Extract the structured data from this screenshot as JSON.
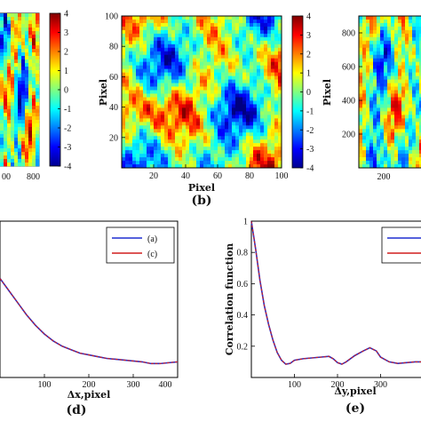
{
  "colorbar_ticks": [
    "4",
    "3",
    "2",
    "1",
    "0",
    "-1",
    "-2",
    "-3",
    "-4"
  ],
  "panel_a": {
    "x_ticks": [
      "00",
      "800"
    ]
  },
  "panel_b": {
    "label": "(b)",
    "xlabel": "Pixel",
    "ylabel": "Pixel",
    "x_ticks": [
      "20",
      "40",
      "60",
      "80",
      "100"
    ],
    "y_ticks": [
      "100",
      "80",
      "60",
      "40",
      "20"
    ]
  },
  "panel_c": {
    "ylabel": "Pixel",
    "y_ticks": [
      "800",
      "600",
      "400",
      "200"
    ],
    "x_ticks": [
      "200"
    ]
  },
  "panel_d": {
    "label": "(d)",
    "xlabel": "Δx,pixel",
    "x_ticks": [
      "100",
      "200",
      "300",
      "400"
    ],
    "legend": [
      "(a)",
      "(c)"
    ]
  },
  "panel_e": {
    "label": "(e)",
    "xlabel": "Δy,pixel",
    "ylabel": "Correlation function",
    "x_ticks": [
      "100",
      "200",
      "300"
    ],
    "y_ticks": [
      "1",
      "0.8",
      "0.6",
      "0.4",
      "0.2"
    ]
  },
  "chart_data": [
    {
      "type": "heatmap",
      "panel": "b",
      "xlim": [
        0,
        100
      ],
      "ylim": [
        0,
        100
      ],
      "colorbar_range": [
        -4,
        4
      ],
      "colormap": "jet"
    },
    {
      "type": "line",
      "panel": "d",
      "xlim": [
        0,
        400
      ],
      "series": [
        {
          "name": "(a)",
          "color": "#1f2fd0",
          "x": [
            0,
            20,
            40,
            60,
            80,
            100,
            120,
            140,
            160,
            180,
            200,
            220,
            240,
            260,
            280,
            300,
            320,
            340,
            360,
            380,
            400
          ],
          "y": [
            0.62,
            0.55,
            0.48,
            0.41,
            0.35,
            0.3,
            0.26,
            0.23,
            0.21,
            0.19,
            0.18,
            0.17,
            0.16,
            0.155,
            0.15,
            0.145,
            0.14,
            0.13,
            0.13,
            0.135,
            0.14
          ]
        },
        {
          "name": "(c)",
          "color": "#d01f1f",
          "x": [
            0,
            20,
            40,
            60,
            80,
            100,
            120,
            140,
            160,
            180,
            200,
            220,
            240,
            260,
            280,
            300,
            320,
            340,
            360,
            380,
            400
          ],
          "y": [
            0.62,
            0.55,
            0.48,
            0.41,
            0.35,
            0.3,
            0.26,
            0.23,
            0.21,
            0.19,
            0.18,
            0.17,
            0.16,
            0.155,
            0.15,
            0.145,
            0.14,
            0.13,
            0.13,
            0.135,
            0.14
          ]
        }
      ]
    },
    {
      "type": "line",
      "panel": "e",
      "xlim": [
        0,
        400
      ],
      "ylim": [
        0,
        1
      ],
      "series": [
        {
          "color": "#1f2fd0",
          "x": [
            0,
            10,
            20,
            30,
            40,
            50,
            60,
            70,
            80,
            90,
            100,
            120,
            140,
            160,
            180,
            190,
            200,
            210,
            220,
            240,
            260,
            275,
            290,
            300,
            320,
            340,
            360,
            380,
            400
          ],
          "y": [
            1.0,
            0.82,
            0.62,
            0.46,
            0.34,
            0.24,
            0.16,
            0.11,
            0.085,
            0.09,
            0.11,
            0.12,
            0.125,
            0.13,
            0.135,
            0.12,
            0.095,
            0.085,
            0.1,
            0.14,
            0.17,
            0.19,
            0.17,
            0.13,
            0.1,
            0.09,
            0.095,
            0.1,
            0.1
          ]
        },
        {
          "color": "#d01f1f",
          "x": [
            0,
            10,
            20,
            30,
            40,
            50,
            60,
            70,
            80,
            90,
            100,
            120,
            140,
            160,
            180,
            190,
            200,
            210,
            220,
            240,
            260,
            275,
            290,
            300,
            320,
            340,
            360,
            380,
            400
          ],
          "y": [
            1.0,
            0.82,
            0.62,
            0.46,
            0.34,
            0.24,
            0.16,
            0.11,
            0.085,
            0.09,
            0.11,
            0.12,
            0.125,
            0.13,
            0.135,
            0.12,
            0.095,
            0.085,
            0.1,
            0.14,
            0.17,
            0.19,
            0.17,
            0.13,
            0.1,
            0.09,
            0.095,
            0.1,
            0.1
          ]
        }
      ]
    }
  ]
}
